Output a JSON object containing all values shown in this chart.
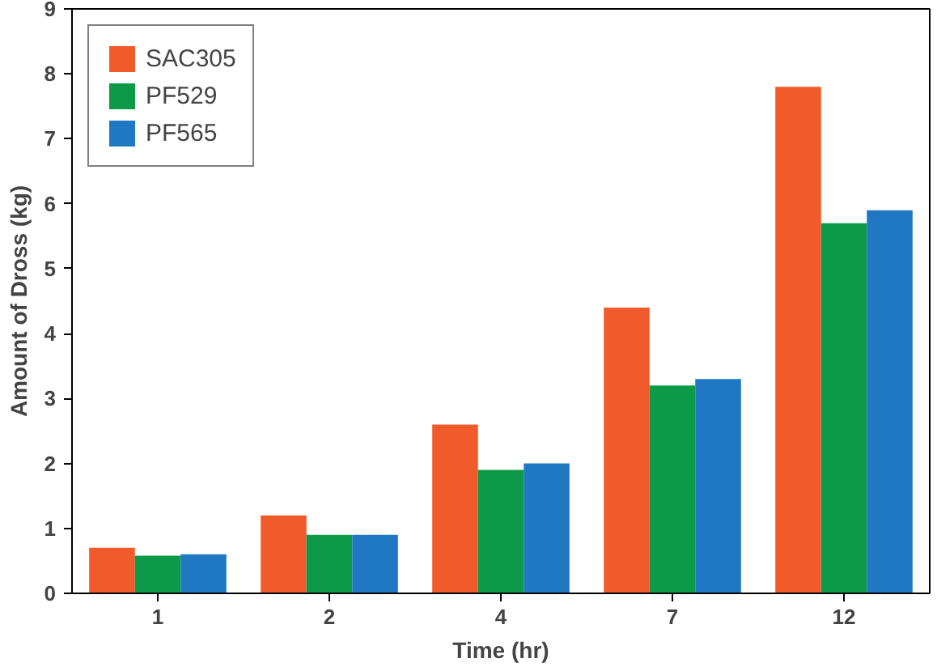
{
  "chart_data": {
    "type": "bar",
    "xlabel": "Time (hr)",
    "ylabel": "Amount of Dross (kg)",
    "categories": [
      "1",
      "2",
      "4",
      "7",
      "12"
    ],
    "series": [
      {
        "name": "SAC305",
        "color": "#f15a2b",
        "values": [
          0.7,
          1.2,
          2.6,
          4.4,
          7.8
        ]
      },
      {
        "name": "PF529",
        "color": "#0c9a48",
        "values": [
          0.58,
          0.9,
          1.9,
          3.2,
          5.7
        ]
      },
      {
        "name": "PF565",
        "color": "#1f78c1",
        "values": [
          0.6,
          0.9,
          2.0,
          3.3,
          5.9
        ]
      }
    ],
    "ylim": [
      0,
      9
    ],
    "yticks": [
      0,
      1,
      2,
      3,
      4,
      5,
      6,
      7,
      8,
      9
    ],
    "grid": false,
    "legend": "top left"
  }
}
